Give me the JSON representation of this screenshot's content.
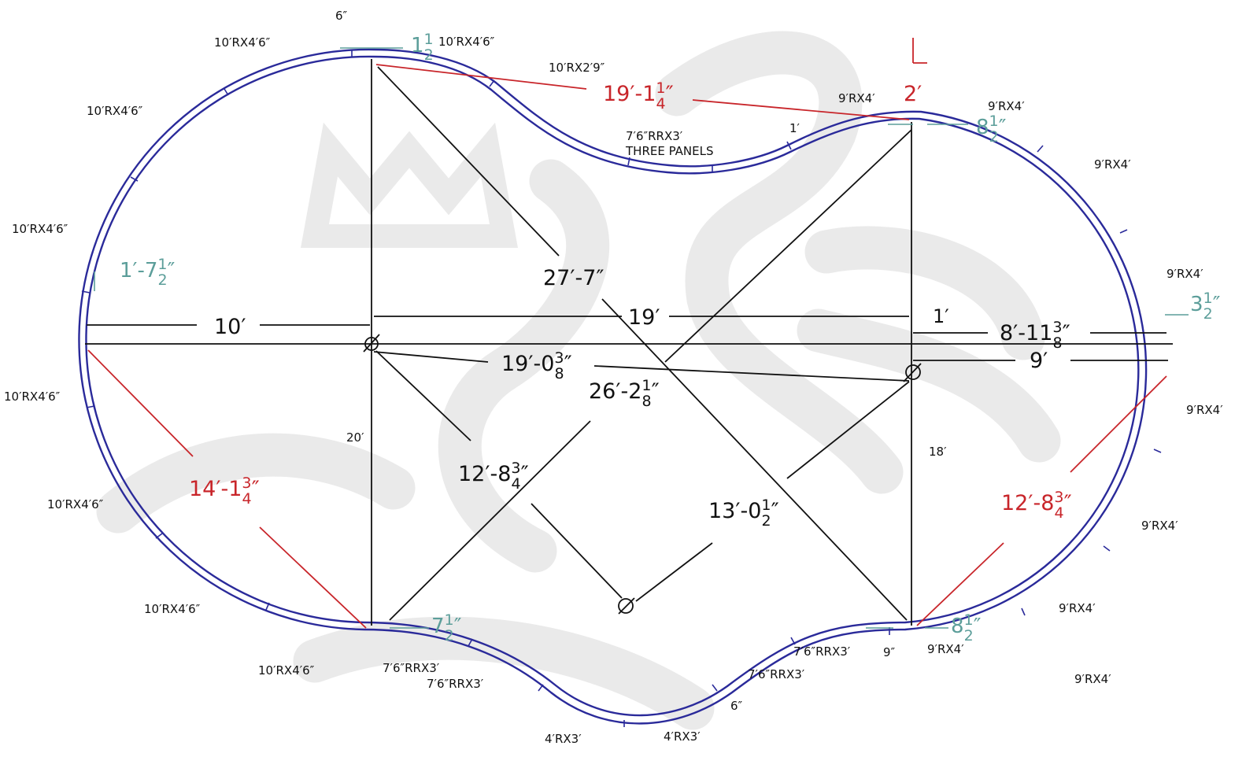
{
  "labels": {
    "panels": [
      {
        "id": "p1",
        "text": "6″"
      },
      {
        "id": "p2",
        "text": "10′RX4′6″"
      },
      {
        "id": "p3",
        "text": "10′RX4′6″"
      },
      {
        "id": "p4",
        "text": "10′RX2′9″"
      },
      {
        "id": "p5",
        "text": "10′RX4′6″"
      },
      {
        "id": "p6",
        "text": "7′6″RRX3′"
      },
      {
        "id": "p7",
        "text": "THREE PANELS"
      },
      {
        "id": "p8",
        "text": "9′RX4′"
      },
      {
        "id": "p9",
        "text": "1′"
      },
      {
        "id": "p10",
        "text": "9′RX4′"
      },
      {
        "id": "p11",
        "text": "9′RX4′"
      },
      {
        "id": "p12",
        "text": "10′RX4′6″"
      },
      {
        "id": "p13",
        "text": "9′RX4′"
      },
      {
        "id": "p14",
        "text": "10′RX4′6″"
      },
      {
        "id": "p15",
        "text": "9′RX4′"
      },
      {
        "id": "p16",
        "text": "20′"
      },
      {
        "id": "p17",
        "text": "18′"
      },
      {
        "id": "p18",
        "text": "10′RX4′6″"
      },
      {
        "id": "p19",
        "text": "9′RX4′"
      },
      {
        "id": "p20",
        "text": "10′RX4′6″"
      },
      {
        "id": "p21",
        "text": "9′RX4′"
      },
      {
        "id": "p22",
        "text": "10′RX4′6″"
      },
      {
        "id": "p23",
        "text": "7′6″RRX3′"
      },
      {
        "id": "p24",
        "text": "7′6″RRX3′"
      },
      {
        "id": "p25",
        "text": "7′6″RRX3′"
      },
      {
        "id": "p26",
        "text": "9″"
      },
      {
        "id": "p27",
        "text": "9′RX4′"
      },
      {
        "id": "p28",
        "text": "7′6″RRX3′"
      },
      {
        "id": "p29",
        "text": "9′RX4′"
      },
      {
        "id": "p30",
        "text": "6″"
      },
      {
        "id": "p31",
        "text": "4′RX3′"
      },
      {
        "id": "p32",
        "text": "4′RX3′"
      }
    ],
    "black_dims": {
      "d10": "10′",
      "d19": "19′",
      "d1": "1′",
      "d8_11_main": "8′-11",
      "d8_11_n": "3",
      "d8_11_d": "8",
      "d9": "9′",
      "d27_7": "27′-7″",
      "d19_0_main": "19′-0",
      "d19_0_n": "3",
      "d19_0_d": "8",
      "d26_2_main": "26′-2",
      "d26_2_n": "1",
      "d26_2_d": "8",
      "d12_8_main": "12′-8",
      "d12_8_n": "3",
      "d12_8_d": "4",
      "d13_0_main": "13′-0",
      "d13_0_n": "1",
      "d13_0_d": "2"
    },
    "red_dims": {
      "r19_1_main": "19′-1",
      "r19_1_n": "1",
      "r19_1_d": "4",
      "r2": "2′",
      "r14_1_main": "14′-1",
      "r14_1_n": "3",
      "r14_1_d": "4",
      "r12_8_main": "12′-8",
      "r12_8_n": "3",
      "r12_8_d": "4"
    },
    "teal_dims": {
      "t1_main": "1",
      "t1_n": "1",
      "t1_d": "2",
      "t8a_main": "8",
      "t8a_n": "1",
      "t8a_d": "2",
      "t1_7_main": "1′-7",
      "t1_7_n": "1",
      "t1_7_d": "2",
      "t3_main": "3",
      "t3_n": "1",
      "t3_d": "2",
      "t7_main": "7",
      "t7_n": "1",
      "t7_d": "2",
      "t8b_main": "8",
      "t8b_n": "1",
      "t8b_d": "2"
    }
  },
  "colors": {
    "outline": "#2a2a9a",
    "dimension_black": "#111111",
    "dimension_red": "#c8252a",
    "dimension_teal": "#5c9e9a",
    "watermark": "#d9d9d9"
  }
}
